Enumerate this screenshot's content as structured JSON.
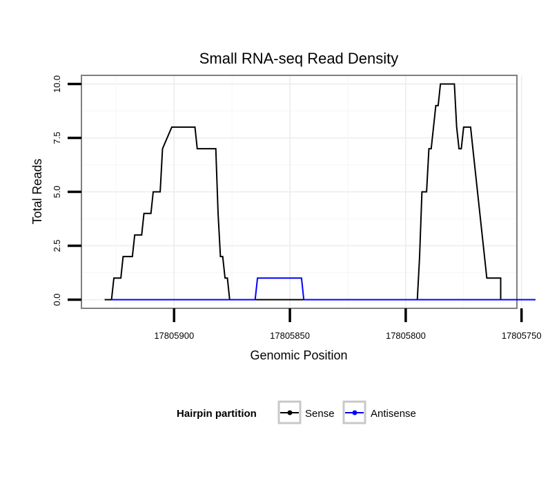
{
  "chart_data": {
    "type": "line",
    "title": "Small RNA-seq Read Density",
    "xlabel": "Genomic Position",
    "ylabel": "Total Reads",
    "x_reversed": true,
    "xlim": [
      17805940,
      17805752
    ],
    "ylim": [
      -0.4,
      10.4
    ],
    "x_ticks": [
      17805900,
      17805850,
      17805800,
      17805750
    ],
    "x_tick_labels": [
      "17805900",
      "17805850",
      "17805800",
      "17805750"
    ],
    "y_ticks": [
      0,
      2.5,
      5,
      7.5,
      10
    ],
    "y_tick_labels": [
      "0.0",
      "2.5",
      "5.0",
      "7.5",
      "10.0"
    ],
    "legend": {
      "title": "Hairpin partition",
      "position": "bottom",
      "entries": [
        "Sense",
        "Antisense"
      ]
    },
    "series": [
      {
        "name": "Sense",
        "color": "#000000",
        "x": [
          17805930,
          17805927,
          17805926,
          17805923,
          17805922,
          17805918,
          17805917,
          17805914,
          17805913,
          17805910,
          17805909,
          17805906,
          17805905,
          17805901,
          17805900,
          17805899,
          17805891,
          17805890,
          17805882,
          17805881,
          17805880,
          17805879,
          17805878,
          17805877,
          17805876,
          17805795,
          17805794,
          17805793,
          17805791,
          17805790,
          17805789,
          17805787,
          17805786,
          17805785,
          17805784,
          17805781,
          17805779,
          17805778,
          17805777,
          17805776,
          17805775,
          17805772,
          17805771,
          17805765,
          17805764,
          17805761,
          17805760,
          17805759,
          17805759,
          17805750,
          17805749,
          17805746,
          17805744
        ],
        "values": [
          0,
          0,
          1,
          1,
          2,
          2,
          3,
          3,
          4,
          4,
          5,
          5,
          7,
          8,
          8,
          8,
          8,
          7,
          7,
          4,
          2,
          2,
          1,
          1,
          0,
          0,
          2,
          5,
          5,
          7,
          7,
          9,
          9,
          10,
          10,
          10,
          10,
          8,
          7,
          7,
          8,
          8,
          7,
          1,
          1,
          1,
          1,
          1,
          0,
          0,
          0,
          0,
          0
        ]
      },
      {
        "name": "Antisense",
        "color": "#0000ff",
        "x": [
          17805927,
          17805865,
          17805864,
          17805845,
          17805844,
          17805795,
          17805744
        ],
        "values": [
          0,
          0,
          1,
          1,
          0,
          0,
          0
        ]
      }
    ]
  }
}
